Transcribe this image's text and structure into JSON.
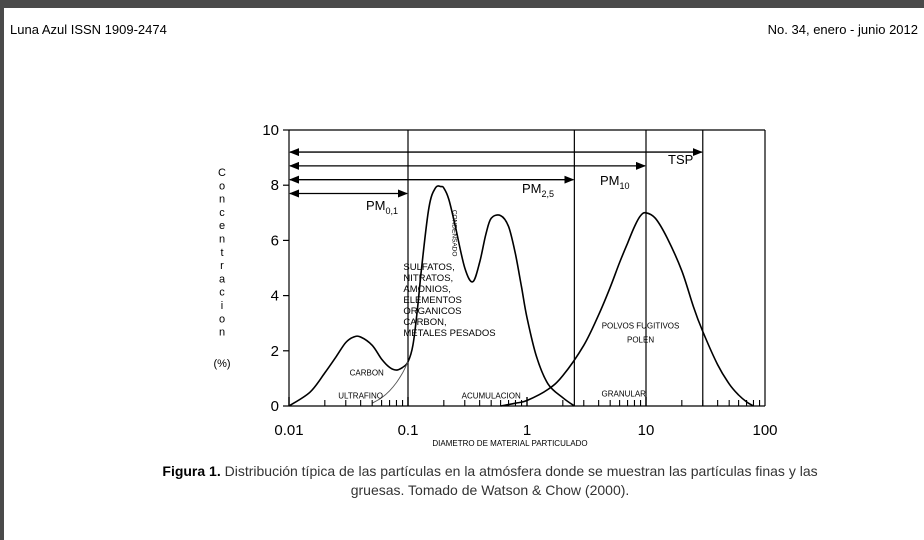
{
  "header": {
    "journal": "Luna Azul ISSN 1909-2474",
    "issue": "No. 34, enero - junio 2012"
  },
  "caption": {
    "label": "Figura 1.",
    "text": "Distribución típica de las partículas en la atmósfera donde se muestran las partículas finas y las gruesas. Tomado de Watson & Chow (2000)."
  },
  "chart_data": {
    "type": "line",
    "xscale": "log",
    "xlim": [
      0.01,
      100
    ],
    "ylim": [
      0,
      10
    ],
    "xlabel": "DIAMETRO DE MATERIAL PARTICULADO",
    "ylabel_letters": [
      "C",
      "o",
      "n",
      "c",
      "e",
      "n",
      "t",
      "r",
      "a",
      "c",
      "i",
      "o",
      "n"
    ],
    "ylabel_unit": "(%)",
    "x_ticks": [
      "0.01",
      "0.1",
      "1",
      "10",
      "100"
    ],
    "y_ticks": [
      "0",
      "2",
      "4",
      "6",
      "8",
      "10"
    ],
    "vertical_lines_x": [
      0.1,
      2.5,
      10,
      30
    ],
    "size_ranges": [
      {
        "label": "PM",
        "subscript": "0,1",
        "x_start": 0.01,
        "x_end": 0.1,
        "y": 7.7
      },
      {
        "label": "PM",
        "subscript": "2,5",
        "x_start": 0.01,
        "x_end": 2.5,
        "y": 8.2
      },
      {
        "label": "PM",
        "subscript": "10",
        "x_start": 0.01,
        "x_end": 10,
        "y": 8.7
      },
      {
        "label": "TSP",
        "subscript": "",
        "x_start": 0.01,
        "x_end": 30,
        "y": 9.2
      }
    ],
    "series": [
      {
        "x": [
          0.01,
          0.015,
          0.02,
          0.025,
          0.03,
          0.035,
          0.04,
          0.05,
          0.06,
          0.07,
          0.08,
          0.09,
          0.1,
          0.11,
          0.12,
          0.13,
          0.15,
          0.17,
          0.19,
          0.2,
          0.22,
          0.25,
          0.3,
          0.35,
          0.4,
          0.45,
          0.5,
          0.6,
          0.7,
          0.8,
          0.9,
          1.0,
          1.2,
          1.5,
          2.0,
          2.5
        ],
        "y": [
          0.0,
          0.5,
          1.2,
          1.8,
          2.3,
          2.5,
          2.5,
          2.2,
          1.7,
          1.4,
          1.3,
          1.4,
          1.6,
          2.2,
          3.5,
          5.0,
          7.2,
          7.9,
          7.95,
          7.9,
          7.5,
          6.5,
          5.0,
          4.5,
          5.2,
          6.2,
          6.8,
          6.9,
          6.5,
          5.5,
          4.3,
          3.2,
          1.8,
          0.8,
          0.3,
          0.0
        ]
      },
      {
        "x": [
          0.05,
          0.06,
          0.07,
          0.08,
          0.09,
          0.1
        ],
        "y": [
          0.1,
          0.3,
          0.55,
          0.85,
          1.2,
          1.6
        ]
      },
      {
        "x": [
          0.6,
          0.8,
          1.0,
          1.5,
          2.0,
          3.0,
          4.0,
          5.0,
          6.0,
          7.0,
          8.0,
          9.0,
          10.0,
          12.0,
          15.0,
          20.0,
          25.0,
          30.0,
          40.0,
          50.0,
          60.0,
          70.0,
          80.0
        ],
        "y": [
          0.0,
          0.1,
          0.2,
          0.6,
          1.1,
          2.2,
          3.3,
          4.3,
          5.2,
          5.9,
          6.5,
          6.9,
          7.0,
          6.8,
          6.1,
          4.9,
          3.6,
          2.7,
          1.5,
          0.8,
          0.4,
          0.15,
          0.0
        ]
      }
    ],
    "annotations": [
      {
        "text": "CARBON",
        "x": 0.045,
        "y": 1.1
      },
      {
        "text": "ULTRAFINO",
        "x": 0.04,
        "y": 0.28
      },
      {
        "text": "CONDENSADO",
        "x": 0.22,
        "y": 6.6,
        "rotated": true
      },
      {
        "text": "SULFATOS, NITRATOS, AMONIOS, ELEMENTOS ORGANICOS CARBON, METALES PESADOS",
        "lines": [
          "SULFATOS,",
          "NITRATOS,",
          "AMONIOS,",
          "ELEMENTOS",
          "ORGANICOS",
          "CARBON,",
          "METALES PESADOS"
        ],
        "x": 0.18,
        "y": 3.7
      },
      {
        "text": "ACUMULACION",
        "x": 0.5,
        "y": 0.28
      },
      {
        "text": "POLVOS FUGITIVOS",
        "x": 9.0,
        "y": 2.8
      },
      {
        "text": "POLEN",
        "x": 9.0,
        "y": 2.3
      },
      {
        "text": "GRANULAR",
        "x": 6.5,
        "y": 0.35
      }
    ]
  }
}
